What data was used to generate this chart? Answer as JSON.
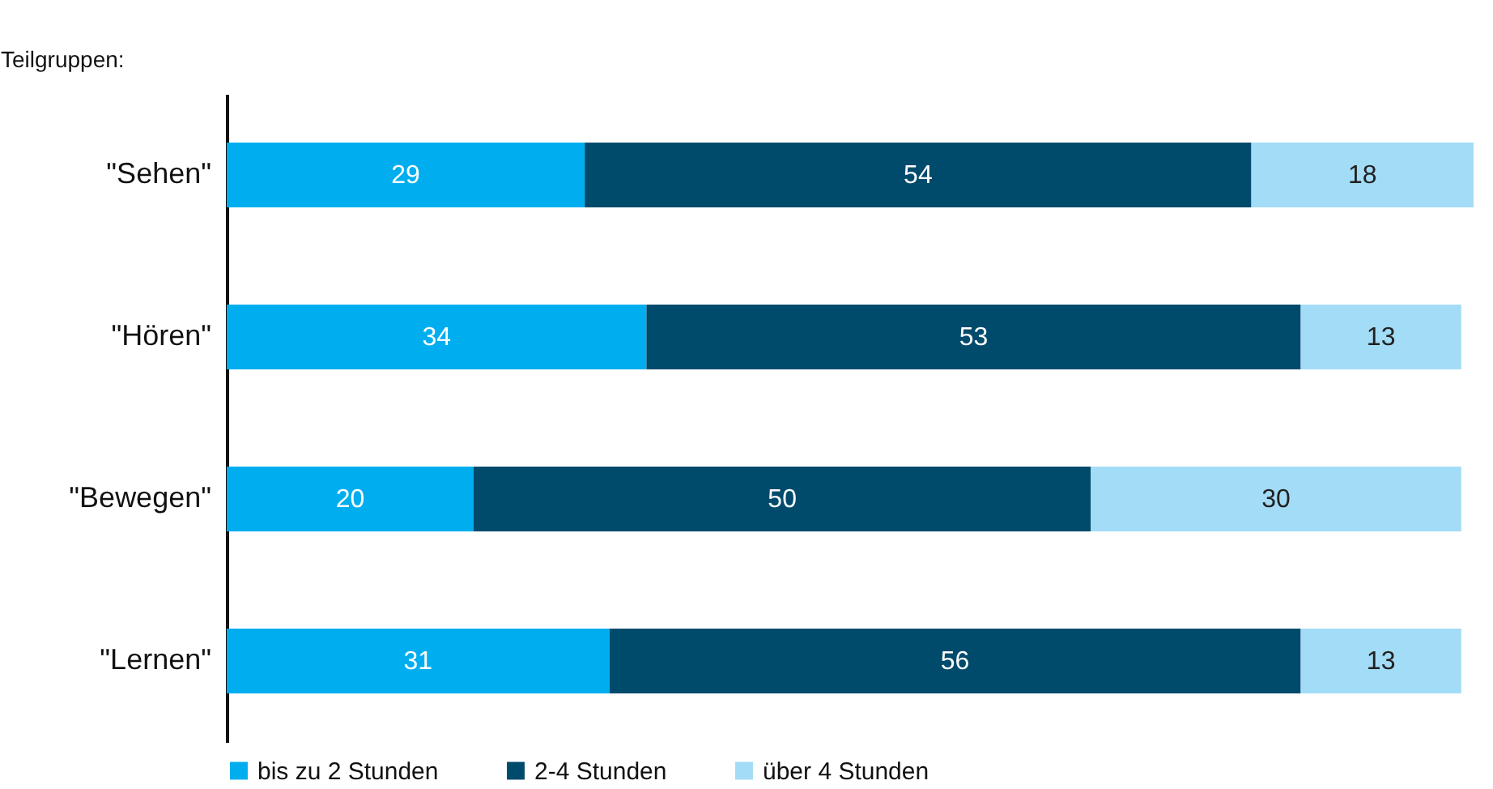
{
  "chart_data": {
    "type": "bar",
    "orientation": "horizontal",
    "stacked": true,
    "ylabel": "Teilgruppen:",
    "categories": [
      "\"Sehen\"",
      "\"Hören\"",
      "\"Bewegen\"",
      "\"Lernen\""
    ],
    "series": [
      {
        "name": "bis zu 2 Stunden",
        "color": "#00aeef",
        "values": [
          29,
          34,
          20,
          31
        ]
      },
      {
        "name": "2-4 Stunden",
        "color": "#004a6b",
        "values": [
          54,
          53,
          50,
          56
        ]
      },
      {
        "name": "über 4 Stunden",
        "color": "#a3dcf6",
        "values": [
          18,
          13,
          30,
          13
        ]
      }
    ],
    "data_labels": true,
    "grid": false,
    "legend": "bottom"
  }
}
